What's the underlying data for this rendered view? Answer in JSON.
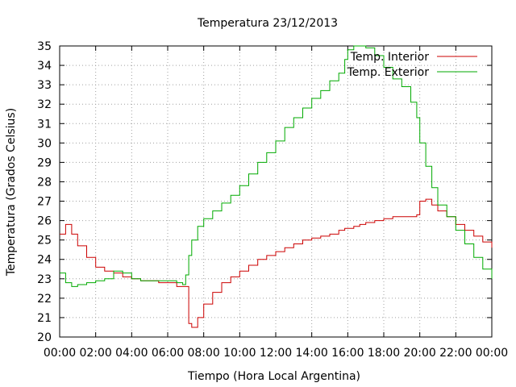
{
  "chart_data": {
    "type": "line",
    "title": "Temperatura 23/12/2013",
    "xlabel": "Tiempo (Hora Local Argentina)",
    "ylabel": "Temperatura (Grados Celsius)",
    "ylim": [
      20,
      35
    ],
    "xlim": [
      "00:00",
      "24:00"
    ],
    "grid": true,
    "legend_position": "top-right",
    "y_ticks": [
      "20",
      "21",
      "22",
      "23",
      "24",
      "25",
      "26",
      "27",
      "28",
      "29",
      "30",
      "31",
      "32",
      "33",
      "34",
      "35"
    ],
    "x_ticks": [
      "00:00",
      "02:00",
      "04:00",
      "06:00",
      "08:00",
      "10:00",
      "12:00",
      "14:00",
      "16:00",
      "18:00",
      "20:00",
      "22:00",
      "00:00"
    ],
    "x": [
      "00:00",
      "00:20",
      "00:40",
      "01:00",
      "01:30",
      "02:00",
      "02:30",
      "03:00",
      "03:30",
      "04:00",
      "04:30",
      "05:00",
      "05:30",
      "06:00",
      "06:30",
      "06:50",
      "07:00",
      "07:10",
      "07:20",
      "07:40",
      "08:00",
      "08:30",
      "09:00",
      "09:30",
      "10:00",
      "10:30",
      "11:00",
      "11:30",
      "12:00",
      "12:30",
      "13:00",
      "13:30",
      "14:00",
      "14:30",
      "15:00",
      "15:30",
      "15:50",
      "16:00",
      "16:20",
      "16:40",
      "17:00",
      "17:30",
      "18:00",
      "18:30",
      "19:00",
      "19:30",
      "19:50",
      "20:00",
      "20:20",
      "20:40",
      "21:00",
      "21:30",
      "22:00",
      "22:30",
      "23:00",
      "23:30",
      "24:00"
    ],
    "series": [
      {
        "name": "Temp. Interior",
        "color": "#cc0000",
        "values": [
          25.3,
          25.8,
          25.3,
          24.7,
          24.1,
          23.6,
          23.4,
          23.3,
          23.1,
          23.0,
          22.9,
          22.9,
          22.8,
          22.8,
          22.6,
          22.6,
          22.6,
          20.7,
          20.5,
          21.0,
          21.7,
          22.3,
          22.8,
          23.1,
          23.4,
          23.7,
          24.0,
          24.2,
          24.4,
          24.6,
          24.8,
          25.0,
          25.1,
          25.2,
          25.3,
          25.5,
          25.6,
          25.6,
          25.7,
          25.8,
          25.9,
          26.0,
          26.1,
          26.2,
          26.2,
          26.2,
          26.3,
          27.0,
          27.1,
          26.8,
          26.5,
          26.2,
          25.8,
          25.5,
          25.2,
          24.9,
          24.6
        ]
      },
      {
        "name": "Temp. Exterior",
        "color": "#00aa00",
        "values": [
          23.3,
          22.8,
          22.6,
          22.7,
          22.8,
          22.9,
          23.0,
          23.4,
          23.3,
          23.0,
          22.9,
          22.9,
          22.9,
          22.9,
          22.8,
          22.7,
          23.2,
          24.2,
          25.0,
          25.7,
          26.1,
          26.5,
          26.9,
          27.3,
          27.8,
          28.4,
          29.0,
          29.5,
          30.1,
          30.8,
          31.3,
          31.8,
          32.3,
          32.7,
          33.2,
          33.6,
          34.3,
          34.8,
          35.0,
          35.0,
          34.9,
          34.5,
          33.9,
          33.3,
          32.9,
          32.1,
          31.3,
          30.0,
          28.8,
          27.7,
          26.8,
          26.2,
          25.5,
          24.8,
          24.1,
          23.5,
          23.0
        ]
      }
    ]
  }
}
